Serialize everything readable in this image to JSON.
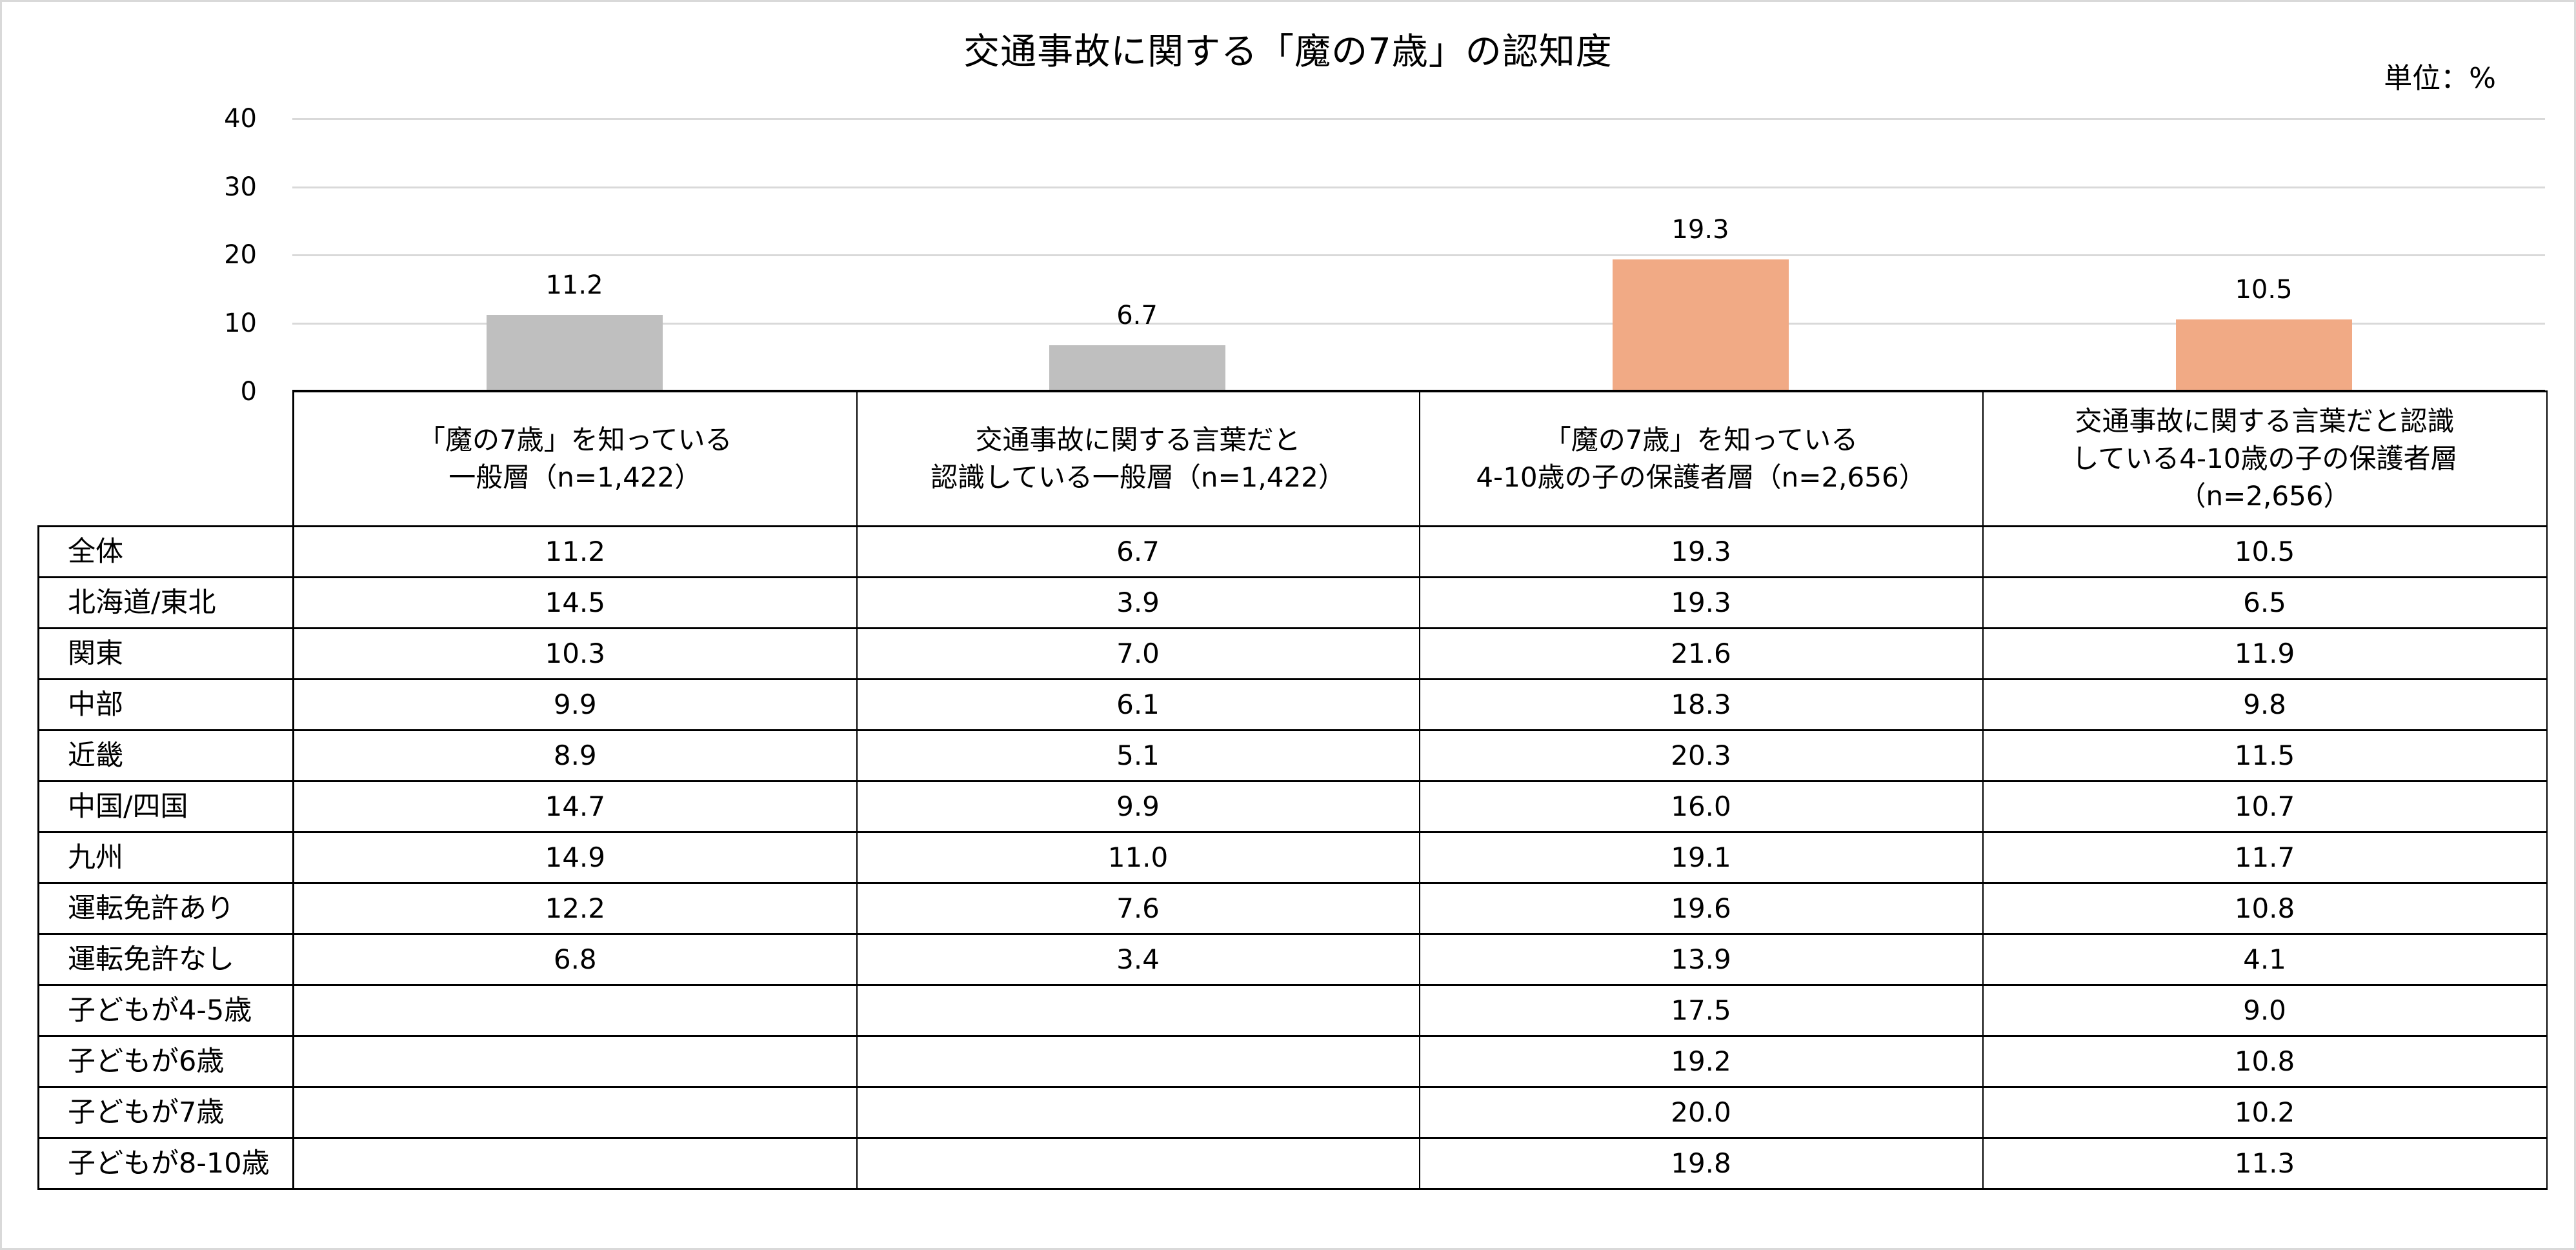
{
  "title": "交通事故に関する「魔の7歳」の認知度",
  "unit_label": "単位：%",
  "colors": {
    "general_bar": "#BFBFBF",
    "parent_bar": "#F1AA85",
    "gridline": "#D9D9D9",
    "frame": "#D9D9D9"
  },
  "y_axis": {
    "ticks": [
      "40",
      "30",
      "20",
      "10",
      "0"
    ]
  },
  "bars": [
    {
      "label": "11.2",
      "value": 11.2,
      "group": "general"
    },
    {
      "label": "6.7",
      "value": 6.7,
      "group": "general"
    },
    {
      "label": "19.3",
      "value": 19.3,
      "group": "parent"
    },
    {
      "label": "10.5",
      "value": 10.5,
      "group": "parent"
    }
  ],
  "table": {
    "headers": [
      {
        "lines": [
          "「魔の7歳」を知っている",
          "一般層（n=1,422）"
        ]
      },
      {
        "lines": [
          "交通事故に関する言葉だと",
          "認識している一般層（n=1,422）"
        ]
      },
      {
        "lines": [
          "「魔の7歳」を知っている",
          "4-10歳の子の保護者層（n=2,656）"
        ]
      },
      {
        "lines": [
          "交通事故に関する言葉だと認識",
          "している4-10歳の子の保護者層",
          "（n=2,656）"
        ]
      }
    ],
    "rows": [
      {
        "label": "全体",
        "values": [
          "11.2",
          "6.7",
          "19.3",
          "10.5"
        ]
      },
      {
        "label": "北海道/東北",
        "values": [
          "14.5",
          "3.9",
          "19.3",
          "6.5"
        ]
      },
      {
        "label": "関東",
        "values": [
          "10.3",
          "7.0",
          "21.6",
          "11.9"
        ]
      },
      {
        "label": "中部",
        "values": [
          "9.9",
          "6.1",
          "18.3",
          "9.8"
        ]
      },
      {
        "label": "近畿",
        "values": [
          "8.9",
          "5.1",
          "20.3",
          "11.5"
        ]
      },
      {
        "label": "中国/四国",
        "values": [
          "14.7",
          "9.9",
          "16.0",
          "10.7"
        ]
      },
      {
        "label": "九州",
        "values": [
          "14.9",
          "11.0",
          "19.1",
          "11.7"
        ]
      },
      {
        "label": "運転免許あり",
        "values": [
          "12.2",
          "7.6",
          "19.6",
          "10.8"
        ]
      },
      {
        "label": "運転免許なし",
        "values": [
          "6.8",
          "3.4",
          "13.9",
          "4.1"
        ]
      },
      {
        "label": "子どもが4-5歳",
        "values": [
          "",
          "",
          "17.5",
          "9.0"
        ]
      },
      {
        "label": "子どもが6歳",
        "values": [
          "",
          "",
          "19.2",
          "10.8"
        ]
      },
      {
        "label": "子どもが7歳",
        "values": [
          "",
          "",
          "20.0",
          "10.2"
        ]
      },
      {
        "label": "子どもが8-10歳",
        "values": [
          "",
          "",
          "19.8",
          "11.3"
        ]
      }
    ]
  },
  "chart_data": {
    "type": "bar",
    "title": "交通事故に関する「魔の7歳」の認知度",
    "xlabel": "",
    "ylabel": "",
    "unit": "%",
    "ylim": [
      0,
      40
    ],
    "yticks": [
      0,
      10,
      20,
      30,
      40
    ],
    "grid": true,
    "legend": null,
    "categories": [
      "「魔の7歳」を知っている一般層（n=1,422）",
      "交通事故に関する言葉だと認識している一般層（n=1,422）",
      "「魔の7歳」を知っている4-10歳の子の保護者層（n=2,656）",
      "交通事故に関する言葉だと認識している4-10歳の子の保護者層（n=2,656）"
    ],
    "values": [
      11.2,
      6.7,
      19.3,
      10.5
    ],
    "bar_colors": [
      "#BFBFBF",
      "#BFBFBF",
      "#F1AA85",
      "#F1AA85"
    ],
    "data_table": {
      "row_labels": [
        "全体",
        "北海道/東北",
        "関東",
        "中部",
        "近畿",
        "中国/四国",
        "九州",
        "運転免許あり",
        "運転免許なし",
        "子どもが4-5歳",
        "子どもが6歳",
        "子どもが7歳",
        "子どもが8-10歳"
      ],
      "series": [
        {
          "name": "「魔の7歳」を知っている一般層（n=1,422）",
          "values": [
            11.2,
            14.5,
            10.3,
            9.9,
            8.9,
            14.7,
            14.9,
            12.2,
            6.8,
            null,
            null,
            null,
            null
          ]
        },
        {
          "name": "交通事故に関する言葉だと認識している一般層（n=1,422）",
          "values": [
            6.7,
            3.9,
            7.0,
            6.1,
            5.1,
            9.9,
            11.0,
            7.6,
            3.4,
            null,
            null,
            null,
            null
          ]
        },
        {
          "name": "「魔の7歳」を知っている4-10歳の子の保護者層（n=2,656）",
          "values": [
            19.3,
            19.3,
            21.6,
            18.3,
            20.3,
            16.0,
            19.1,
            19.6,
            13.9,
            17.5,
            19.2,
            20.0,
            19.8
          ]
        },
        {
          "name": "交通事故に関する言葉だと認識している4-10歳の子の保護者層（n=2,656）",
          "values": [
            10.5,
            6.5,
            11.9,
            9.8,
            11.5,
            10.7,
            11.7,
            10.8,
            4.1,
            9.0,
            10.8,
            10.2,
            11.3
          ]
        }
      ]
    }
  }
}
